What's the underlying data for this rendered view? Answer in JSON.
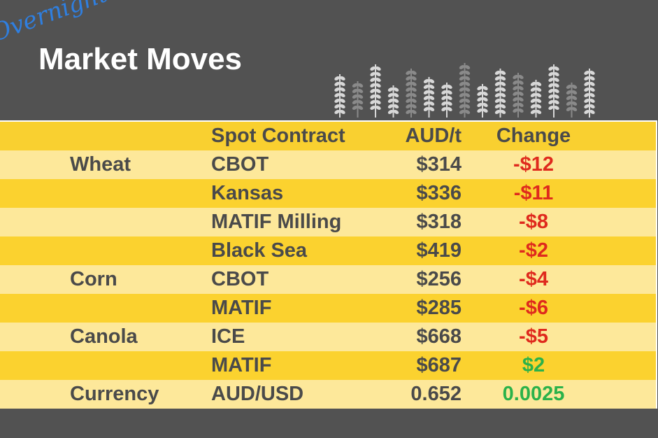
{
  "header": {
    "subtitle": "Overnight",
    "title": "Market Moves"
  },
  "table": {
    "header": [
      "Spot Contract",
      "AUD/t",
      "Change"
    ],
    "rows": [
      {
        "commodity": "Wheat",
        "contract": "CBOT",
        "price": "$314",
        "change": "-$12"
      },
      {
        "contract": "Kansas",
        "price": "$336",
        "change": "-$11"
      },
      {
        "contract": "MATIF Milling",
        "price": "$318",
        "change": "-$8"
      },
      {
        "contract": "Black Sea",
        "price": "$419",
        "change": "-$2"
      },
      {
        "commodity": "Corn",
        "contract": "CBOT",
        "price": "$256",
        "change": "-$4"
      },
      {
        "contract": "MATIF",
        "price": "$285",
        "change": "-$6"
      },
      {
        "commodity": "Canola",
        "contract": "ICE",
        "price": "$668",
        "change": "-$5"
      },
      {
        "contract": "MATIF",
        "price": "$687",
        "change": "$2"
      },
      {
        "commodity": "Currency",
        "contract": "AUD/USD",
        "price": "0.652",
        "change": "0.0025"
      }
    ]
  }
}
